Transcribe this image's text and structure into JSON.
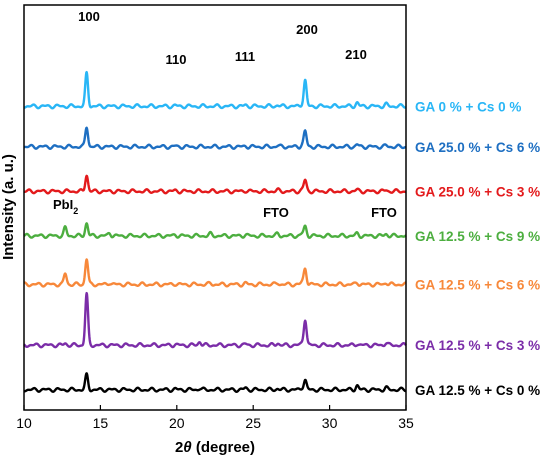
{
  "chart_data": {
    "type": "line",
    "title": "",
    "xlabel_prefix": "2",
    "xlabel_theta": "θ",
    "xlabel_suffix": " (degree)",
    "ylabel": "Intensity (a. u.)",
    "xlim": [
      10,
      35
    ],
    "x_ticks": [
      "10",
      "15",
      "20",
      "25",
      "30",
      "35"
    ],
    "y_ticks_shown": false,
    "grid": false,
    "annotations": {
      "peak_100": "100",
      "peak_110": "110",
      "peak_111": "111",
      "peak_200": "200",
      "peak_210": "210",
      "pbi2_main": "PbI",
      "pbi2_sub": "2",
      "fto_left": "FTO",
      "fto_right": "FTO"
    },
    "peak_positions": [
      12.7,
      14.1,
      15.6,
      19.9,
      21.5,
      22.2,
      24.5,
      26.6,
      28.2,
      28.4,
      31.8,
      33.7
    ],
    "series": [
      {
        "name": "GA 0 % + Cs 0 %",
        "color": "#29b6f6",
        "baseline": 0.75,
        "amplitudes": [
          0,
          0.9,
          0,
          0.02,
          0,
          0,
          0.03,
          0.03,
          0.05,
          0.7,
          0.1,
          0.05
        ]
      },
      {
        "name": "GA 25.0 % + Cs 6 %",
        "color": "#1e6fc2",
        "baseline": 0.65,
        "amplitudes": [
          0,
          0.55,
          0,
          0.02,
          0,
          0,
          0.02,
          0.03,
          0.05,
          0.42,
          0.06,
          0.03
        ]
      },
      {
        "name": "GA 25.0 % + Cs 3 %",
        "color": "#e31a1c",
        "baseline": 0.54,
        "amplitudes": [
          0,
          0.45,
          0,
          0.02,
          0,
          0,
          0.02,
          0.03,
          0.04,
          0.3,
          0.04,
          0.03
        ]
      },
      {
        "name": "GA 12.5 % + Cs 9 %",
        "color": "#4cae3f",
        "baseline": 0.43,
        "amplitudes": [
          0.22,
          0.35,
          0.08,
          0.03,
          0,
          0.05,
          0.03,
          0.05,
          0.05,
          0.25,
          0.06,
          0.05
        ]
      },
      {
        "name": "GA 12.5 % + Cs 6 %",
        "color": "#f7883a",
        "baseline": 0.31,
        "amplitudes": [
          0.3,
          0.7,
          0.05,
          0.02,
          0,
          0.03,
          0.03,
          0.04,
          0.05,
          0.45,
          0.05,
          0.05
        ]
      },
      {
        "name": "GA 12.5 % + Cs 3 %",
        "color": "#7b2da8",
        "baseline": 0.16,
        "amplitudes": [
          0.05,
          1.4,
          0,
          0.02,
          0.1,
          0,
          0.03,
          0.06,
          0.05,
          0.72,
          0.04,
          0.07
        ]
      },
      {
        "name": "GA 12.5 % + Cs 0 %",
        "color": "#000000",
        "baseline": 0.05,
        "amplitudes": [
          0,
          0.4,
          0,
          0.02,
          0.04,
          0,
          0.05,
          0.03,
          0.05,
          0.26,
          0.12,
          0.05
        ]
      }
    ]
  }
}
